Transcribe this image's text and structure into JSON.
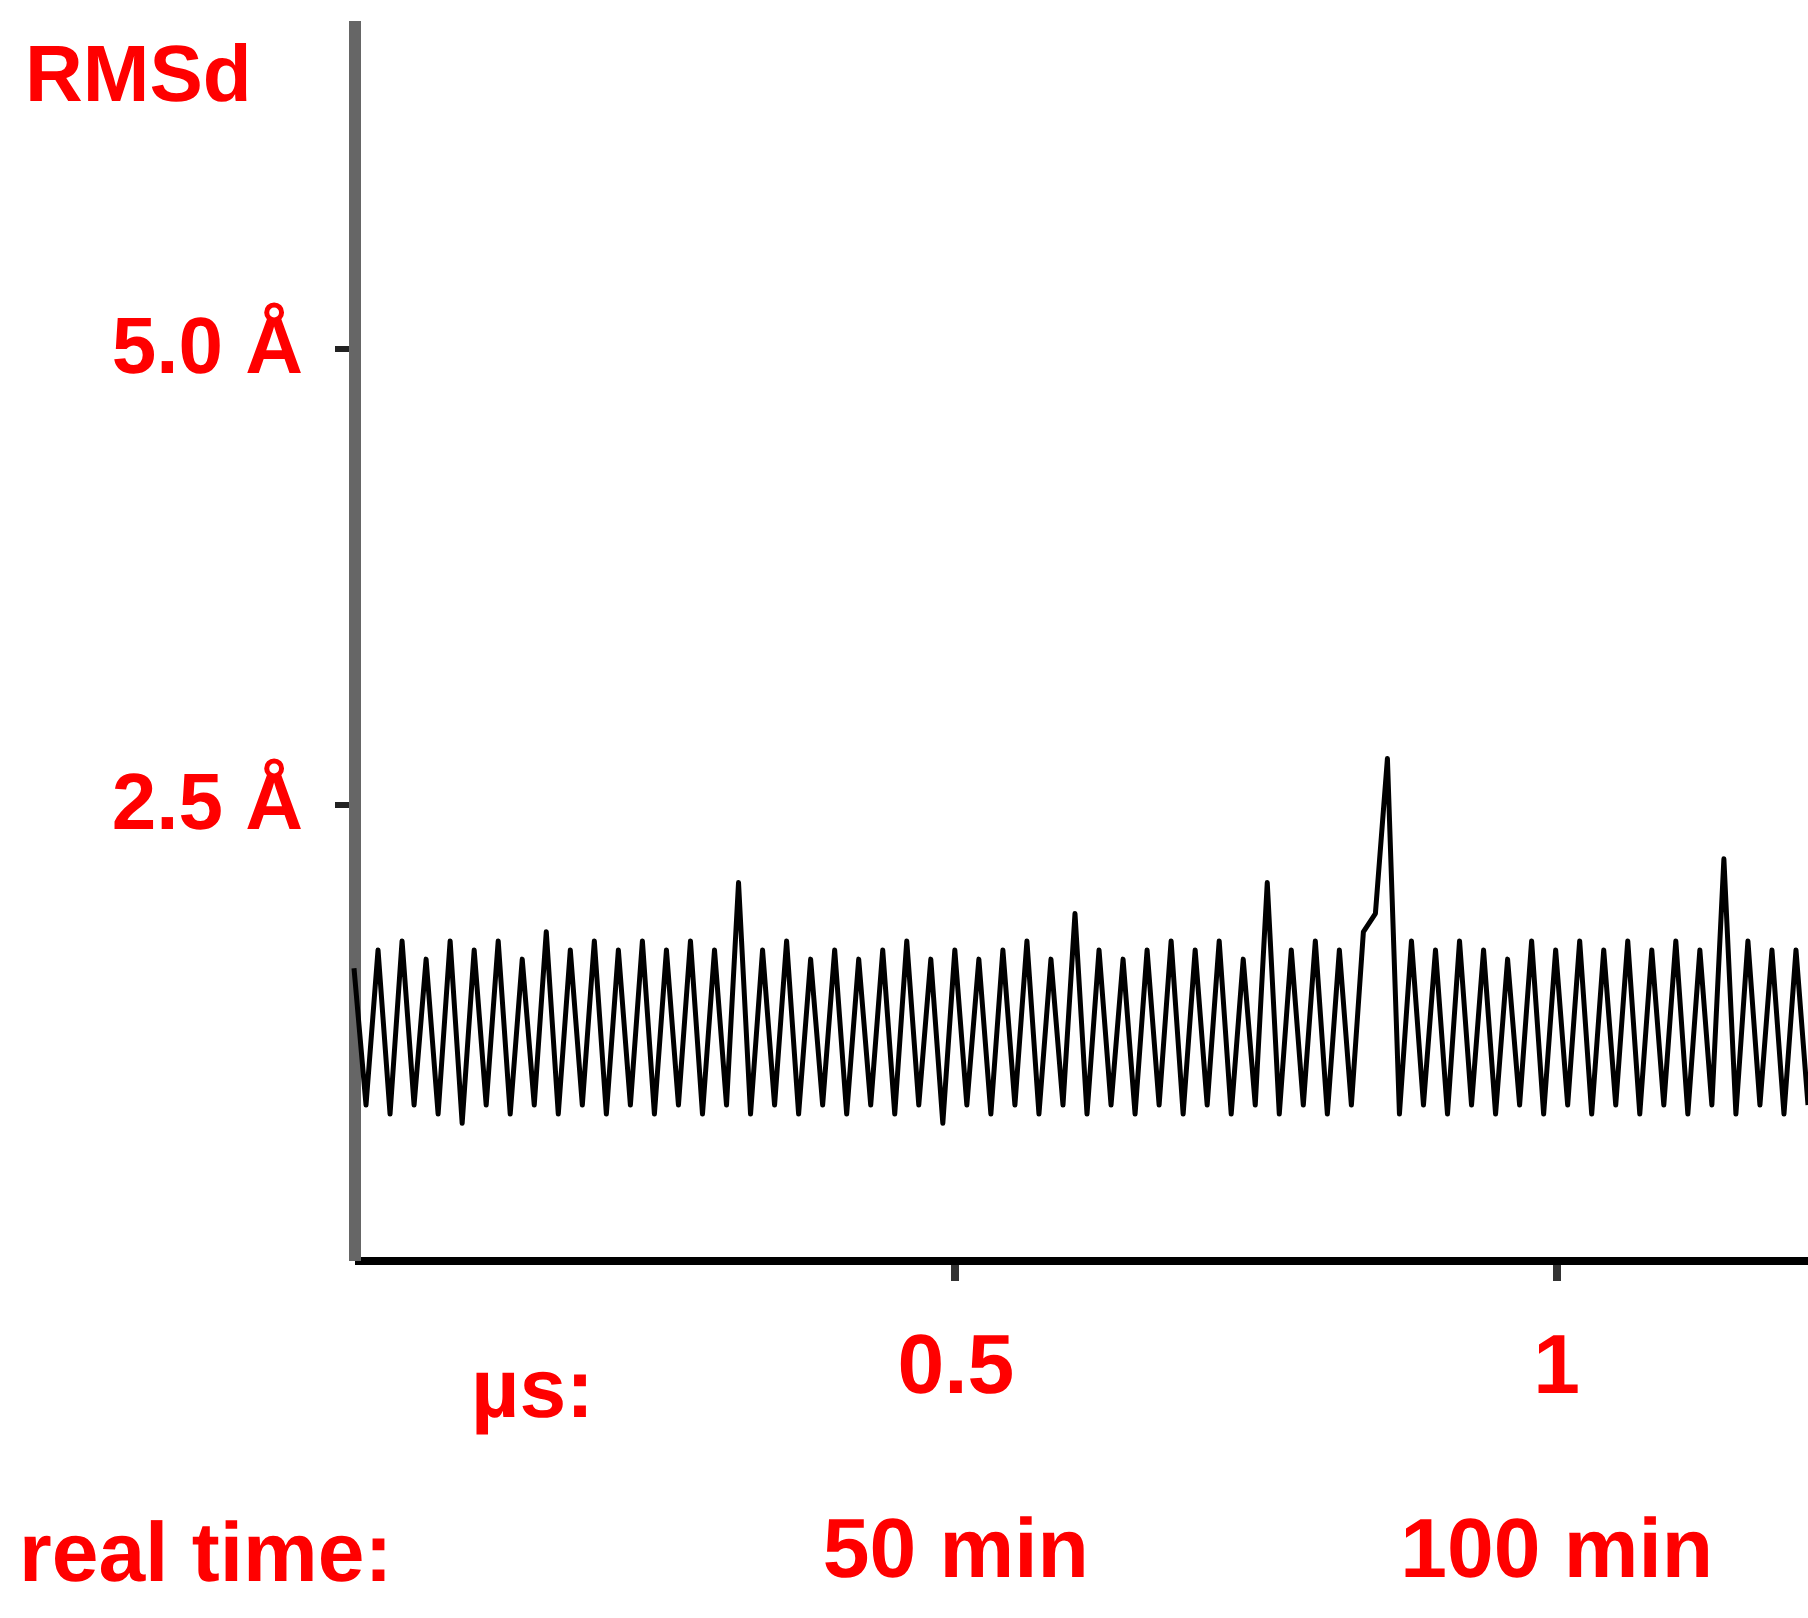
{
  "chart_data": {
    "type": "line",
    "ylabel": "RMSd",
    "xlabel": "µs:",
    "x2label": "real time:",
    "xlim": [
      0,
      1.21
    ],
    "xticks": [
      0.5,
      1
    ],
    "x2lim": [
      0,
      121
    ],
    "x2ticks": [
      {
        "value": 50,
        "label": "50 min"
      },
      {
        "value": 100,
        "label": "100 min"
      }
    ],
    "ylim": [
      0,
      6.8
    ],
    "yticks": [
      {
        "value": 2.5,
        "label": "2.5 Å"
      },
      {
        "value": 5,
        "label": "5.0 Å"
      }
    ],
    "x": [
      0,
      0.01,
      0.02,
      0.03,
      0.04,
      0.05,
      0.06,
      0.07,
      0.08,
      0.09,
      0.1,
      0.11,
      0.12,
      0.13,
      0.14,
      0.15,
      0.16,
      0.17,
      0.18,
      0.19,
      0.2,
      0.21,
      0.22,
      0.23,
      0.24,
      0.25,
      0.26,
      0.27,
      0.28,
      0.29,
      0.3,
      0.31,
      0.32,
      0.33,
      0.34,
      0.35,
      0.36,
      0.37,
      0.38,
      0.39,
      0.4,
      0.41,
      0.42,
      0.43,
      0.44,
      0.45,
      0.46,
      0.47,
      0.48,
      0.49,
      0.5,
      0.51,
      0.52,
      0.53,
      0.54,
      0.55,
      0.56,
      0.57,
      0.58,
      0.59,
      0.6,
      0.61,
      0.62,
      0.63,
      0.64,
      0.65,
      0.66,
      0.67,
      0.68,
      0.69,
      0.7,
      0.71,
      0.72,
      0.73,
      0.74,
      0.75,
      0.76,
      0.77,
      0.78,
      0.79,
      0.8,
      0.81,
      0.82,
      0.83,
      0.84,
      0.85,
      0.86,
      0.87,
      0.88,
      0.89,
      0.9,
      0.91,
      0.92,
      0.93,
      0.94,
      0.95,
      0.96,
      0.97,
      0.98,
      0.99,
      1,
      1.01,
      1.02,
      1.03,
      1.04,
      1.05,
      1.06,
      1.07,
      1.08,
      1.09,
      1.1,
      1.11,
      1.12,
      1.13,
      1.14,
      1.15,
      1.16,
      1.17,
      1.18,
      1.19,
      1.2,
      1.21
    ],
    "series": [
      {
        "color": "#000000",
        "values": [
          1.6,
          0.85,
          1.7,
          0.8,
          1.75,
          0.85,
          1.65,
          0.8,
          1.75,
          0.75,
          1.7,
          0.85,
          1.75,
          0.8,
          1.65,
          0.85,
          1.8,
          0.8,
          1.7,
          0.85,
          1.75,
          0.8,
          1.7,
          0.85,
          1.75,
          0.8,
          1.7,
          0.85,
          1.75,
          0.8,
          1.7,
          0.85,
          2.07,
          0.8,
          1.7,
          0.85,
          1.75,
          0.8,
          1.65,
          0.85,
          1.7,
          0.8,
          1.65,
          0.85,
          1.7,
          0.8,
          1.75,
          0.85,
          1.65,
          0.75,
          1.7,
          0.85,
          1.65,
          0.8,
          1.7,
          0.85,
          1.75,
          0.8,
          1.65,
          0.85,
          1.9,
          0.8,
          1.7,
          0.85,
          1.65,
          0.8,
          1.7,
          0.85,
          1.75,
          0.8,
          1.7,
          0.85,
          1.75,
          0.8,
          1.65,
          0.85,
          2.07,
          0.8,
          1.7,
          0.85,
          1.75,
          0.8,
          1.7,
          0.85,
          1.8,
          1.9,
          2.75,
          0.8,
          1.75,
          0.85,
          1.7,
          0.8,
          1.75,
          0.85,
          1.7,
          0.8,
          1.65,
          0.85,
          1.75,
          0.8,
          1.7,
          0.85,
          1.75,
          0.8,
          1.7,
          0.85,
          1.75,
          0.8,
          1.7,
          0.85,
          1.75,
          0.8,
          1.7,
          0.85,
          2.2,
          0.8,
          1.75,
          0.85,
          1.7,
          0.8,
          1.7,
          0.85
        ]
      }
    ],
    "grid": false
  }
}
